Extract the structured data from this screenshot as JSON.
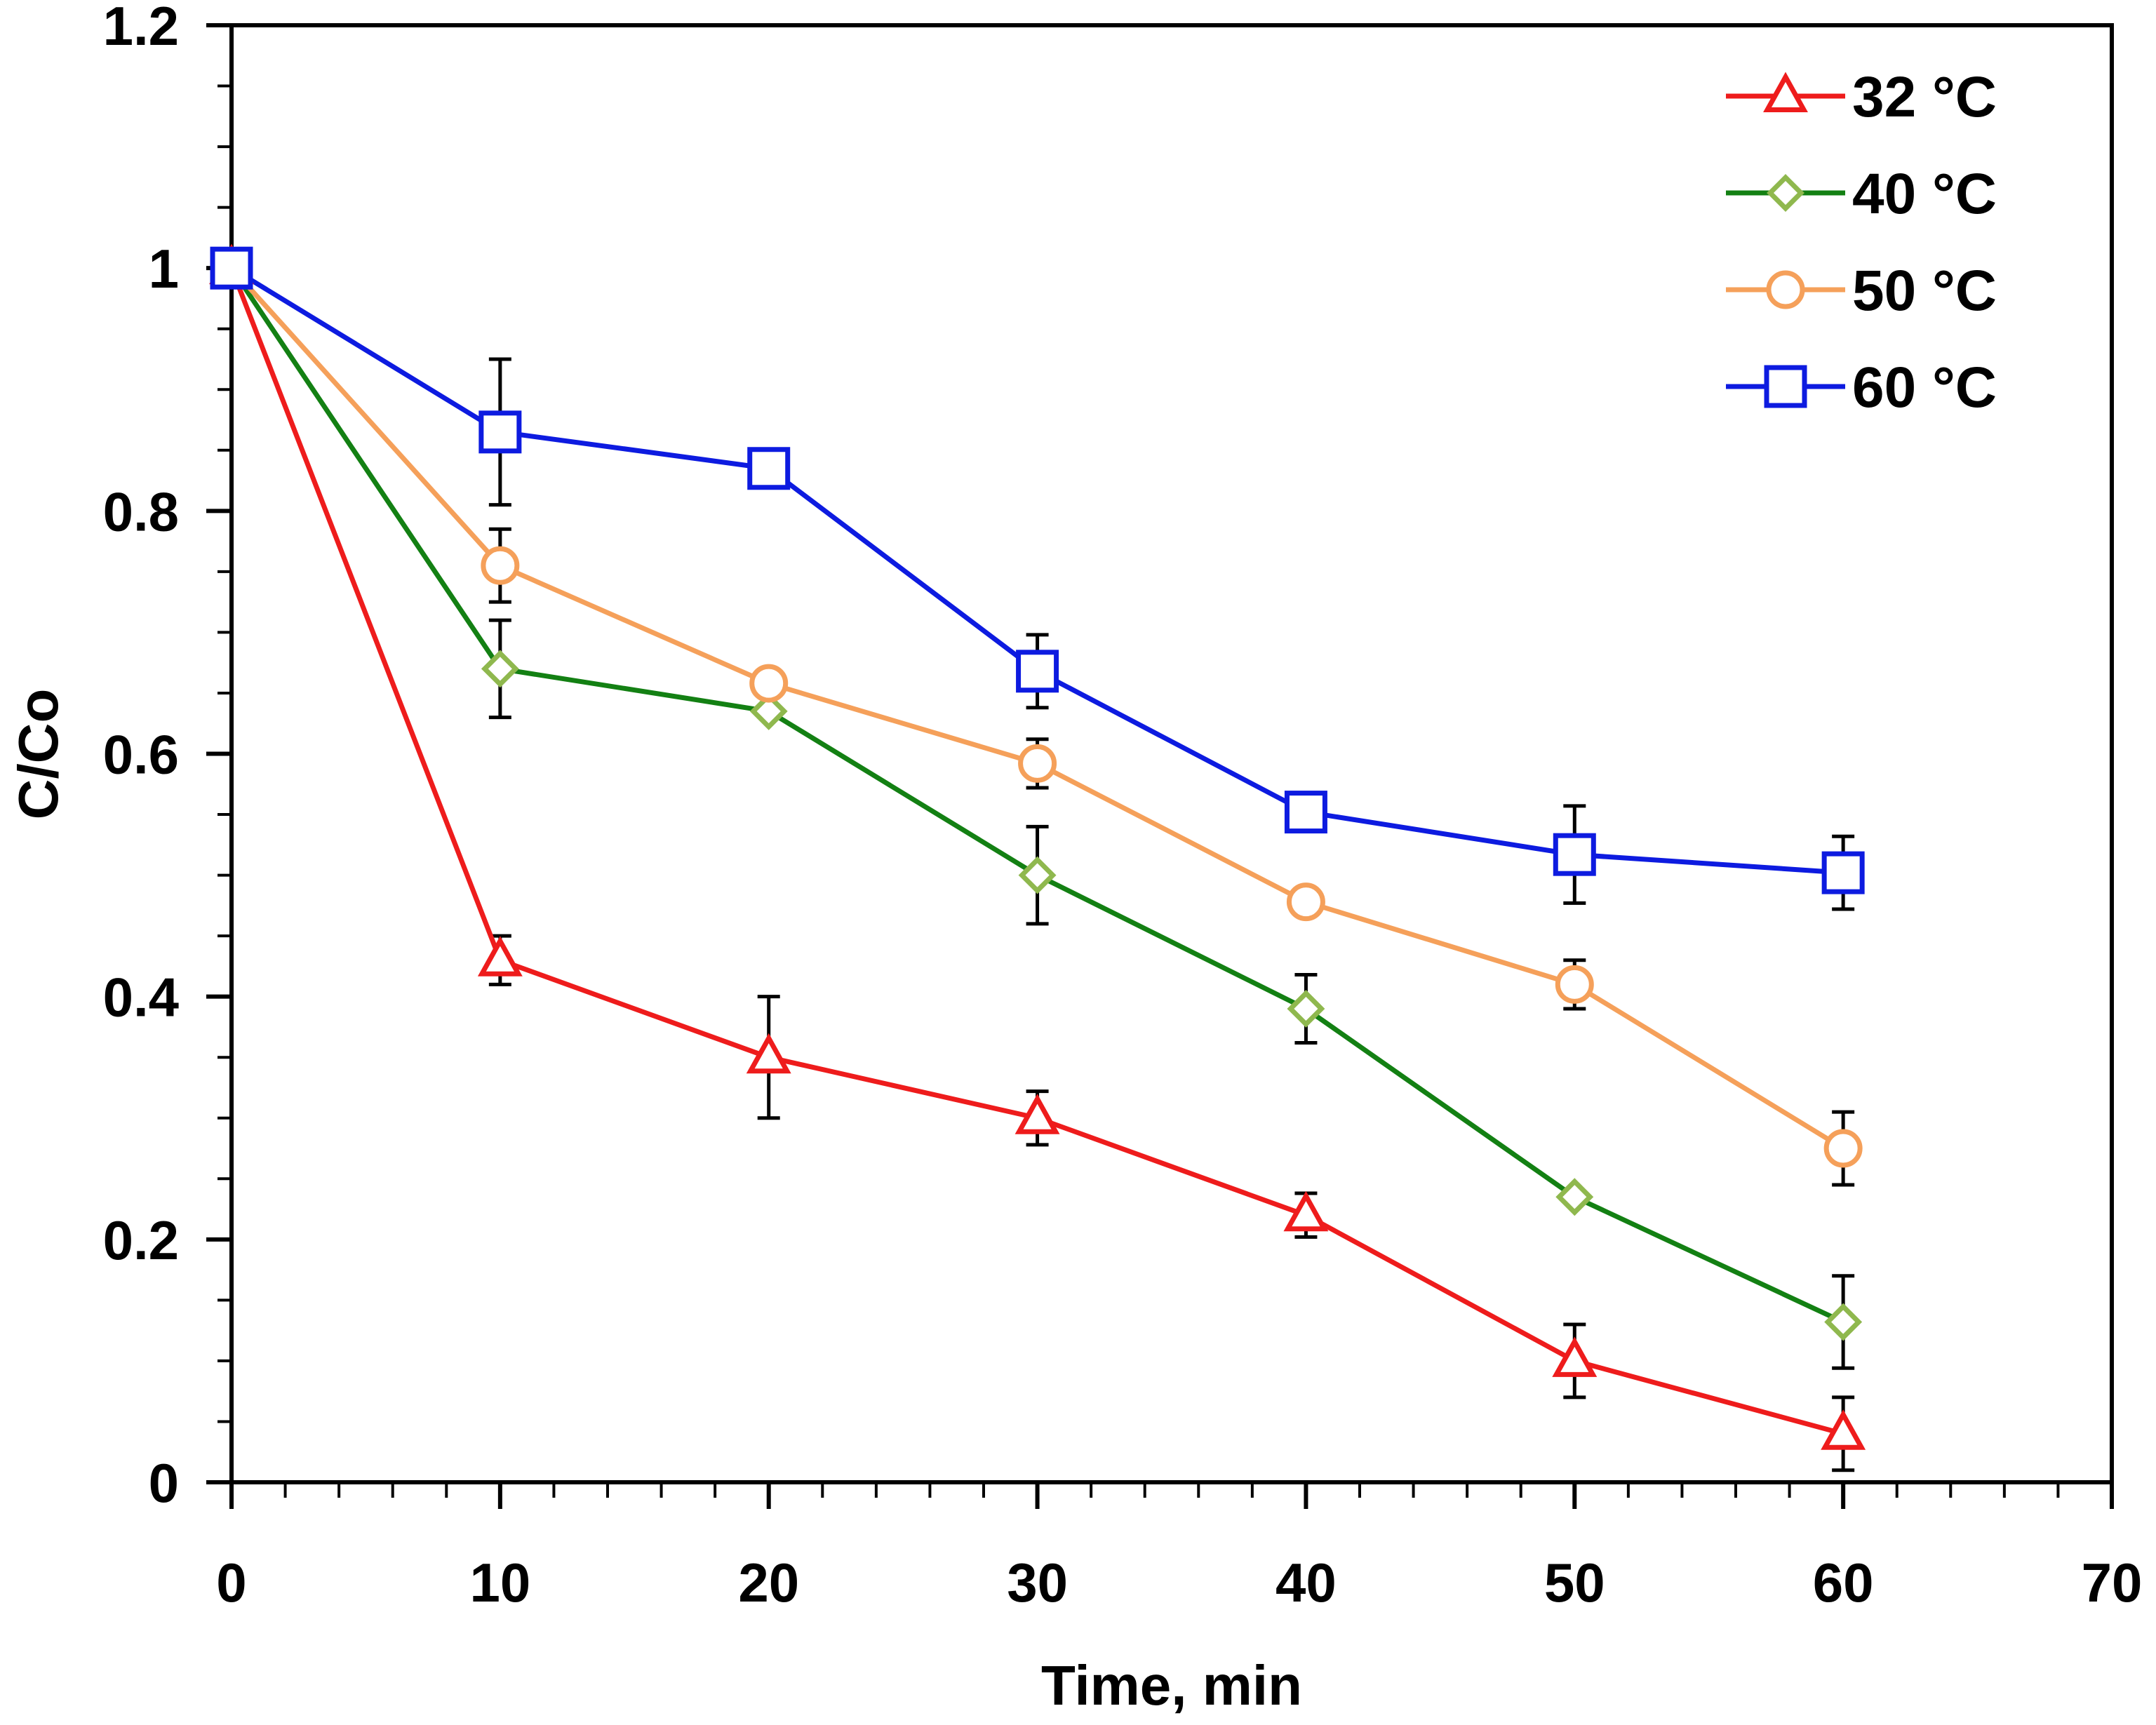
{
  "chart_data": {
    "type": "line",
    "title": "",
    "xlabel": "Time, min",
    "ylabel": "C/Co",
    "xlim": [
      0,
      70
    ],
    "ylim": [
      0,
      1.2
    ],
    "x_ticks": [
      "0",
      "10",
      "20",
      "30",
      "40",
      "50",
      "60",
      "70"
    ],
    "y_ticks": [
      "0",
      "0.2",
      "0.4",
      "0.6",
      "0.8",
      "1",
      "1.2"
    ],
    "legend_position": "top-right",
    "grid": false,
    "x": [
      0,
      10,
      20,
      30,
      40,
      50,
      60
    ],
    "series": [
      {
        "name": "32 °C",
        "color": "#ee1c1c",
        "marker": "triangle",
        "values": [
          1.0,
          0.43,
          0.35,
          0.3,
          0.22,
          0.1,
          0.04
        ],
        "errors": [
          0.0,
          0.02,
          0.05,
          0.022,
          0.018,
          0.03,
          0.03
        ]
      },
      {
        "name": " 40 °C",
        "color": "#138013",
        "marker_color": "#8fb84e",
        "marker": "diamond",
        "values": [
          1.0,
          0.67,
          0.635,
          0.5,
          0.39,
          0.235,
          0.132
        ],
        "errors": [
          0.0,
          0.04,
          0.0,
          0.04,
          0.028,
          0.0,
          0.038
        ]
      },
      {
        "name": "50 °C",
        "color": "#f5a05a",
        "marker": "circle",
        "values": [
          1.0,
          0.755,
          0.658,
          0.592,
          0.478,
          0.41,
          0.275
        ],
        "errors": [
          0.0,
          0.03,
          0.0,
          0.02,
          0.0,
          0.02,
          0.03
        ]
      },
      {
        "name": "60 °C",
        "color": "#0d1be0",
        "marker": "square",
        "values": [
          1.0,
          0.865,
          0.835,
          0.668,
          0.552,
          0.517,
          0.502
        ],
        "errors": [
          0.0,
          0.06,
          0.0,
          0.03,
          0.0,
          0.04,
          0.03
        ]
      }
    ]
  }
}
